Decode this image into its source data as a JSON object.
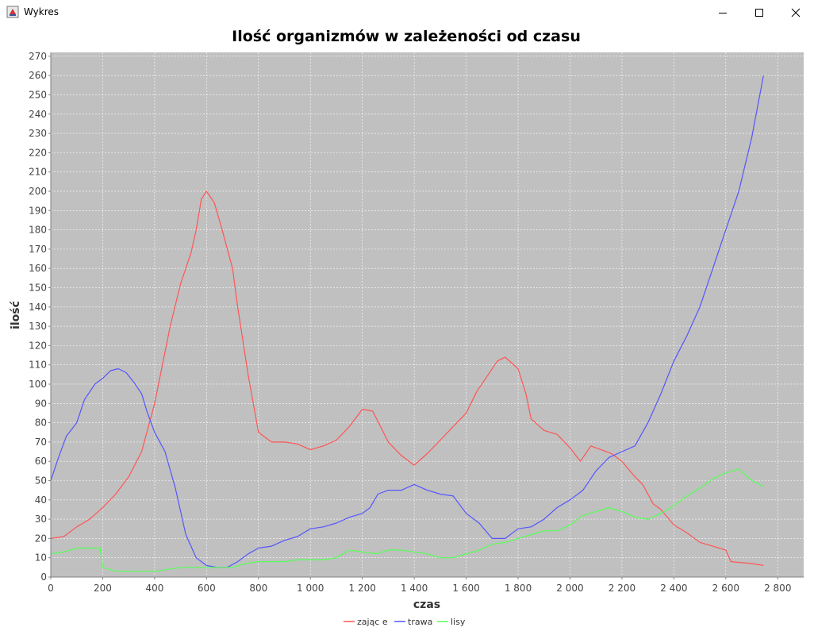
{
  "window": {
    "title": "Wykres",
    "icon": "java-cup-icon",
    "buttons": [
      "minimize-icon",
      "maximize-icon",
      "close-icon"
    ]
  },
  "colors": {
    "plot_background": "#c0c0c0",
    "gridline": "#ffffff",
    "zajace": "#ff5555",
    "trawa": "#5555ff",
    "lisy": "#55ff55"
  },
  "chart_data": {
    "type": "line",
    "title": "Ilość organizmów w zależeności od czasu",
    "xlabel": "czas",
    "ylabel": "ilość",
    "xlim": [
      0,
      2900
    ],
    "ylim": [
      0,
      272
    ],
    "x_ticks": [
      0,
      200,
      400,
      600,
      800,
      1000,
      1200,
      1400,
      1600,
      1800,
      2000,
      2200,
      2400,
      2600,
      2800
    ],
    "x_tick_labels": [
      "0",
      "200",
      "400",
      "600",
      "800",
      "1 000",
      "1 200",
      "1 400",
      "1 600",
      "1 800",
      "2 000",
      "2 200",
      "2 400",
      "2 600",
      "2 800"
    ],
    "y_ticks": [
      0,
      10,
      20,
      30,
      40,
      50,
      60,
      70,
      80,
      90,
      100,
      110,
      120,
      130,
      140,
      150,
      160,
      170,
      180,
      190,
      200,
      210,
      220,
      230,
      240,
      250,
      260,
      270
    ],
    "grid": true,
    "legend_position": "bottom",
    "series": [
      {
        "name": "zając e",
        "color": "#ff5555",
        "points": [
          [
            0,
            20
          ],
          [
            50,
            21
          ],
          [
            100,
            26
          ],
          [
            150,
            30
          ],
          [
            200,
            36
          ],
          [
            250,
            43
          ],
          [
            300,
            52
          ],
          [
            350,
            65
          ],
          [
            400,
            90
          ],
          [
            430,
            110
          ],
          [
            460,
            130
          ],
          [
            500,
            152
          ],
          [
            540,
            168
          ],
          [
            560,
            180
          ],
          [
            580,
            196
          ],
          [
            600,
            200
          ],
          [
            630,
            194
          ],
          [
            660,
            180
          ],
          [
            700,
            160
          ],
          [
            720,
            140
          ],
          [
            760,
            105
          ],
          [
            800,
            75
          ],
          [
            850,
            70
          ],
          [
            900,
            70
          ],
          [
            950,
            69
          ],
          [
            1000,
            66
          ],
          [
            1050,
            68
          ],
          [
            1100,
            71
          ],
          [
            1150,
            78
          ],
          [
            1200,
            87
          ],
          [
            1240,
            86
          ],
          [
            1270,
            78
          ],
          [
            1300,
            70
          ],
          [
            1350,
            63
          ],
          [
            1400,
            58
          ],
          [
            1450,
            64
          ],
          [
            1500,
            71
          ],
          [
            1550,
            78
          ],
          [
            1600,
            85
          ],
          [
            1640,
            96
          ],
          [
            1680,
            104
          ],
          [
            1720,
            112
          ],
          [
            1750,
            114
          ],
          [
            1800,
            108
          ],
          [
            1830,
            95
          ],
          [
            1850,
            82
          ],
          [
            1900,
            76
          ],
          [
            1950,
            74
          ],
          [
            2000,
            67
          ],
          [
            2040,
            60
          ],
          [
            2080,
            68
          ],
          [
            2120,
            66
          ],
          [
            2160,
            64
          ],
          [
            2200,
            60
          ],
          [
            2250,
            52
          ],
          [
            2280,
            48
          ],
          [
            2320,
            38
          ],
          [
            2350,
            35
          ],
          [
            2400,
            27
          ],
          [
            2450,
            23
          ],
          [
            2500,
            18
          ],
          [
            2550,
            16
          ],
          [
            2600,
            14
          ],
          [
            2620,
            8
          ],
          [
            2700,
            7
          ],
          [
            2745,
            6
          ]
        ]
      },
      {
        "name": "trawa",
        "color": "#5555ff",
        "points": [
          [
            0,
            50
          ],
          [
            30,
            62
          ],
          [
            60,
            73
          ],
          [
            100,
            80
          ],
          [
            130,
            92
          ],
          [
            170,
            100
          ],
          [
            200,
            103
          ],
          [
            230,
            107
          ],
          [
            260,
            108
          ],
          [
            290,
            106
          ],
          [
            320,
            101
          ],
          [
            350,
            95
          ],
          [
            370,
            86
          ],
          [
            400,
            75
          ],
          [
            440,
            65
          ],
          [
            480,
            46
          ],
          [
            520,
            22
          ],
          [
            560,
            10
          ],
          [
            600,
            6
          ],
          [
            640,
            5
          ],
          [
            680,
            5
          ],
          [
            720,
            8
          ],
          [
            760,
            12
          ],
          [
            800,
            15
          ],
          [
            850,
            16
          ],
          [
            900,
            19
          ],
          [
            950,
            21
          ],
          [
            1000,
            25
          ],
          [
            1050,
            26
          ],
          [
            1100,
            28
          ],
          [
            1150,
            31
          ],
          [
            1200,
            33
          ],
          [
            1230,
            36
          ],
          [
            1260,
            43
          ],
          [
            1300,
            45
          ],
          [
            1350,
            45
          ],
          [
            1400,
            48
          ],
          [
            1450,
            45
          ],
          [
            1500,
            43
          ],
          [
            1550,
            42
          ],
          [
            1600,
            33
          ],
          [
            1650,
            28
          ],
          [
            1700,
            20
          ],
          [
            1750,
            20
          ],
          [
            1800,
            25
          ],
          [
            1850,
            26
          ],
          [
            1900,
            30
          ],
          [
            1950,
            36
          ],
          [
            2000,
            40
          ],
          [
            2050,
            45
          ],
          [
            2100,
            55
          ],
          [
            2150,
            62
          ],
          [
            2200,
            65
          ],
          [
            2250,
            68
          ],
          [
            2300,
            80
          ],
          [
            2350,
            95
          ],
          [
            2400,
            112
          ],
          [
            2450,
            125
          ],
          [
            2500,
            140
          ],
          [
            2550,
            160
          ],
          [
            2600,
            180
          ],
          [
            2650,
            200
          ],
          [
            2700,
            228
          ],
          [
            2745,
            260
          ]
        ]
      },
      {
        "name": "lisy",
        "color": "#55ff55",
        "points": [
          [
            0,
            12
          ],
          [
            50,
            13
          ],
          [
            100,
            15
          ],
          [
            150,
            15
          ],
          [
            190,
            15
          ],
          [
            200,
            5
          ],
          [
            250,
            3
          ],
          [
            300,
            3
          ],
          [
            350,
            3
          ],
          [
            400,
            3
          ],
          [
            450,
            4
          ],
          [
            500,
            5
          ],
          [
            550,
            5
          ],
          [
            600,
            5
          ],
          [
            650,
            5
          ],
          [
            700,
            5
          ],
          [
            750,
            7
          ],
          [
            800,
            8
          ],
          [
            850,
            8
          ],
          [
            900,
            8
          ],
          [
            950,
            9
          ],
          [
            1000,
            9
          ],
          [
            1050,
            9
          ],
          [
            1100,
            10
          ],
          [
            1150,
            14
          ],
          [
            1200,
            13
          ],
          [
            1250,
            12
          ],
          [
            1300,
            14
          ],
          [
            1350,
            14
          ],
          [
            1400,
            13
          ],
          [
            1450,
            12
          ],
          [
            1500,
            10
          ],
          [
            1550,
            10
          ],
          [
            1600,
            12
          ],
          [
            1650,
            14
          ],
          [
            1700,
            17
          ],
          [
            1750,
            18
          ],
          [
            1800,
            20
          ],
          [
            1850,
            22
          ],
          [
            1900,
            24
          ],
          [
            1950,
            24
          ],
          [
            2000,
            27
          ],
          [
            2050,
            32
          ],
          [
            2100,
            34
          ],
          [
            2150,
            36
          ],
          [
            2200,
            34
          ],
          [
            2250,
            31
          ],
          [
            2300,
            30
          ],
          [
            2350,
            33
          ],
          [
            2400,
            37
          ],
          [
            2450,
            42
          ],
          [
            2500,
            46
          ],
          [
            2550,
            51
          ],
          [
            2600,
            54
          ],
          [
            2650,
            56
          ],
          [
            2700,
            50
          ],
          [
            2745,
            47
          ]
        ]
      }
    ]
  }
}
